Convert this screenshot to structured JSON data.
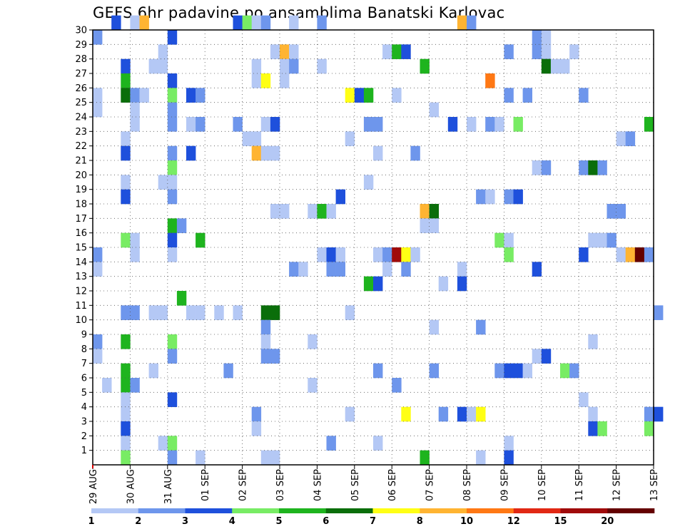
{
  "title": "GEFS 6hr padavine po ansamblima Banatski Karlovac",
  "colors": {
    "1": "#b4c8f5",
    "2": "#6e96ec",
    "3": "#1e50dc",
    "4": "#78ec64",
    "5": "#1eb41e",
    "6": "#0a6e0a",
    "7": "#ffff14",
    "8": "#ffb432",
    "10": "#ff7814",
    "12": "#e12814",
    "15": "#a00a0a",
    "20": "#640000"
  },
  "chart_data": {
    "type": "heatmap",
    "title": "GEFS 6hr padavine po ansamblima Banatski Karlovac",
    "xlabel": "",
    "ylabel": "",
    "x_tick_labels": [
      "29 AUG",
      "30 AUG",
      "31 AUG",
      "01 SEP",
      "02 SEP",
      "03 SEP",
      "04 SEP",
      "05 SEP",
      "06 SEP",
      "07 SEP",
      "08 SEP",
      "09 SEP",
      "10 SEP",
      "11 SEP",
      "12 SEP",
      "13 SEP"
    ],
    "y_tick_labels": [
      "1",
      "2",
      "3",
      "4",
      "5",
      "6",
      "7",
      "8",
      "9",
      "10",
      "11",
      "12",
      "13",
      "14",
      "15",
      "16",
      "17",
      "18",
      "19",
      "20",
      "21",
      "22",
      "23",
      "24",
      "25",
      "26",
      "27",
      "28",
      "29",
      "30"
    ],
    "ylim": [
      0,
      30
    ],
    "x_step_hours": 6,
    "grid": true,
    "legend": {
      "placement": "bottom",
      "labels": [
        "1",
        "2",
        "3",
        "4",
        "5",
        "6",
        "7",
        "8",
        "10",
        "12",
        "15",
        "20"
      ],
      "colors": [
        "#b4c8f5",
        "#6e96ec",
        "#1e50dc",
        "#78ec64",
        "#1eb41e",
        "#0a6e0a",
        "#ffff14",
        "#ffb432",
        "#ff7814",
        "#e12814",
        "#a00a0a",
        "#640000"
      ]
    },
    "cells": [
      [
        2,
        30,
        3
      ],
      [
        4,
        30,
        1
      ],
      [
        5,
        30,
        8
      ],
      [
        15,
        30,
        3
      ],
      [
        16,
        30,
        4
      ],
      [
        17,
        30,
        1
      ],
      [
        18,
        30,
        2
      ],
      [
        21,
        30,
        1
      ],
      [
        24,
        30,
        2
      ],
      [
        39,
        30,
        8
      ],
      [
        40,
        30,
        2
      ],
      [
        0,
        29,
        2
      ],
      [
        8,
        29,
        3
      ],
      [
        47,
        29,
        2
      ],
      [
        48,
        29,
        1
      ],
      [
        7,
        28,
        1
      ],
      [
        19,
        28,
        1
      ],
      [
        20,
        28,
        8
      ],
      [
        21,
        28,
        1
      ],
      [
        31,
        28,
        1
      ],
      [
        32,
        28,
        5
      ],
      [
        33,
        28,
        3
      ],
      [
        44,
        28,
        2
      ],
      [
        47,
        28,
        2
      ],
      [
        48,
        28,
        1
      ],
      [
        51,
        28,
        1
      ],
      [
        3,
        27,
        3
      ],
      [
        6,
        27,
        1
      ],
      [
        7,
        27,
        1
      ],
      [
        17,
        27,
        1
      ],
      [
        20,
        27,
        1
      ],
      [
        21,
        27,
        2
      ],
      [
        24,
        27,
        1
      ],
      [
        35,
        27,
        5
      ],
      [
        48,
        27,
        6
      ],
      [
        49,
        27,
        1
      ],
      [
        50,
        27,
        1
      ],
      [
        3,
        26,
        5
      ],
      [
        8,
        26,
        3
      ],
      [
        17,
        26,
        1
      ],
      [
        18,
        26,
        7
      ],
      [
        20,
        26,
        1
      ],
      [
        42,
        26,
        10
      ],
      [
        0,
        25,
        1
      ],
      [
        3,
        25,
        6
      ],
      [
        4,
        25,
        2
      ],
      [
        5,
        25,
        1
      ],
      [
        8,
        25,
        4
      ],
      [
        10,
        25,
        3
      ],
      [
        11,
        25,
        2
      ],
      [
        27,
        25,
        7
      ],
      [
        28,
        25,
        3
      ],
      [
        29,
        25,
        5
      ],
      [
        32,
        25,
        1
      ],
      [
        44,
        25,
        2
      ],
      [
        46,
        25,
        2
      ],
      [
        52,
        25,
        2
      ],
      [
        0,
        24,
        1
      ],
      [
        4,
        24,
        1
      ],
      [
        8,
        24,
        2
      ],
      [
        36,
        24,
        1
      ],
      [
        4,
        23,
        1
      ],
      [
        8,
        23,
        2
      ],
      [
        10,
        23,
        1
      ],
      [
        11,
        23,
        2
      ],
      [
        15,
        23,
        2
      ],
      [
        18,
        23,
        1
      ],
      [
        19,
        23,
        3
      ],
      [
        29,
        23,
        2
      ],
      [
        30,
        23,
        2
      ],
      [
        38,
        23,
        3
      ],
      [
        40,
        23,
        1
      ],
      [
        42,
        23,
        2
      ],
      [
        43,
        23,
        1
      ],
      [
        45,
        23,
        4
      ],
      [
        59,
        23,
        5
      ],
      [
        3,
        22,
        1
      ],
      [
        16,
        22,
        1
      ],
      [
        17,
        22,
        1
      ],
      [
        27,
        22,
        1
      ],
      [
        56,
        22,
        1
      ],
      [
        57,
        22,
        2
      ],
      [
        3,
        21,
        3
      ],
      [
        8,
        21,
        2
      ],
      [
        10,
        21,
        3
      ],
      [
        17,
        21,
        8
      ],
      [
        18,
        21,
        1
      ],
      [
        19,
        21,
        1
      ],
      [
        30,
        21,
        1
      ],
      [
        34,
        21,
        2
      ],
      [
        8,
        20,
        4
      ],
      [
        47,
        20,
        1
      ],
      [
        48,
        20,
        2
      ],
      [
        52,
        20,
        2
      ],
      [
        53,
        20,
        6
      ],
      [
        54,
        20,
        2
      ],
      [
        3,
        19,
        1
      ],
      [
        7,
        19,
        1
      ],
      [
        8,
        19,
        1
      ],
      [
        29,
        19,
        1
      ],
      [
        3,
        18,
        3
      ],
      [
        8,
        18,
        2
      ],
      [
        26,
        18,
        3
      ],
      [
        41,
        18,
        2
      ],
      [
        42,
        18,
        1
      ],
      [
        44,
        18,
        2
      ],
      [
        45,
        18,
        3
      ],
      [
        19,
        17,
        1
      ],
      [
        20,
        17,
        1
      ],
      [
        23,
        17,
        1
      ],
      [
        24,
        17,
        5
      ],
      [
        25,
        17,
        1
      ],
      [
        35,
        17,
        8
      ],
      [
        36,
        17,
        6
      ],
      [
        55,
        17,
        2
      ],
      [
        56,
        17,
        2
      ],
      [
        8,
        16,
        5
      ],
      [
        9,
        16,
        2
      ],
      [
        35,
        16,
        1
      ],
      [
        36,
        16,
        1
      ],
      [
        3,
        15,
        4
      ],
      [
        4,
        15,
        1
      ],
      [
        8,
        15,
        3
      ],
      [
        11,
        15,
        5
      ],
      [
        43,
        15,
        4
      ],
      [
        44,
        15,
        1
      ],
      [
        53,
        15,
        1
      ],
      [
        54,
        15,
        1
      ],
      [
        55,
        15,
        2
      ],
      [
        0,
        14,
        2
      ],
      [
        4,
        14,
        1
      ],
      [
        8,
        14,
        1
      ],
      [
        24,
        14,
        1
      ],
      [
        25,
        14,
        3
      ],
      [
        26,
        14,
        1
      ],
      [
        30,
        14,
        1
      ],
      [
        31,
        14,
        2
      ],
      [
        32,
        14,
        15
      ],
      [
        33,
        14,
        7
      ],
      [
        34,
        14,
        1
      ],
      [
        44,
        14,
        4
      ],
      [
        52,
        14,
        3
      ],
      [
        56,
        14,
        1
      ],
      [
        57,
        14,
        8
      ],
      [
        58,
        14,
        20
      ],
      [
        59,
        14,
        2
      ],
      [
        0,
        13,
        1
      ],
      [
        21,
        13,
        2
      ],
      [
        22,
        13,
        1
      ],
      [
        25,
        13,
        2
      ],
      [
        26,
        13,
        2
      ],
      [
        31,
        13,
        1
      ],
      [
        33,
        13,
        2
      ],
      [
        39,
        13,
        1
      ],
      [
        47,
        13,
        3
      ],
      [
        29,
        12,
        5
      ],
      [
        30,
        12,
        3
      ],
      [
        37,
        12,
        1
      ],
      [
        39,
        12,
        3
      ],
      [
        9,
        11,
        5
      ],
      [
        3,
        10,
        2
      ],
      [
        4,
        10,
        2
      ],
      [
        6,
        10,
        1
      ],
      [
        7,
        10,
        1
      ],
      [
        10,
        10,
        1
      ],
      [
        11,
        10,
        1
      ],
      [
        13,
        10,
        1
      ],
      [
        15,
        10,
        1
      ],
      [
        18,
        10,
        6
      ],
      [
        19,
        10,
        6
      ],
      [
        27,
        10,
        1
      ],
      [
        60,
        10,
        2
      ],
      [
        18,
        9,
        2
      ],
      [
        36,
        9,
        1
      ],
      [
        41,
        9,
        2
      ],
      [
        0,
        8,
        2
      ],
      [
        3,
        8,
        5
      ],
      [
        8,
        8,
        4
      ],
      [
        18,
        8,
        1
      ],
      [
        23,
        8,
        1
      ],
      [
        53,
        8,
        1
      ],
      [
        0,
        7,
        1
      ],
      [
        8,
        7,
        2
      ],
      [
        18,
        7,
        2
      ],
      [
        19,
        7,
        2
      ],
      [
        47,
        7,
        1
      ],
      [
        48,
        7,
        3
      ],
      [
        3,
        6,
        5
      ],
      [
        6,
        6,
        1
      ],
      [
        14,
        6,
        2
      ],
      [
        30,
        6,
        2
      ],
      [
        36,
        6,
        2
      ],
      [
        43,
        6,
        2
      ],
      [
        44,
        6,
        3
      ],
      [
        45,
        6,
        3
      ],
      [
        46,
        6,
        1
      ],
      [
        50,
        6,
        4
      ],
      [
        51,
        6,
        2
      ],
      [
        1,
        5,
        1
      ],
      [
        3,
        5,
        5
      ],
      [
        4,
        5,
        2
      ],
      [
        23,
        5,
        1
      ],
      [
        32,
        5,
        2
      ],
      [
        3,
        4,
        1
      ],
      [
        8,
        4,
        3
      ],
      [
        52,
        4,
        1
      ],
      [
        3,
        3,
        1
      ],
      [
        17,
        3,
        2
      ],
      [
        27,
        3,
        1
      ],
      [
        33,
        3,
        7
      ],
      [
        37,
        3,
        2
      ],
      [
        39,
        3,
        3
      ],
      [
        40,
        3,
        1
      ],
      [
        41,
        3,
        7
      ],
      [
        53,
        3,
        1
      ],
      [
        59,
        3,
        2
      ],
      [
        60,
        3,
        3
      ],
      [
        3,
        2,
        3
      ],
      [
        17,
        2,
        1
      ],
      [
        53,
        2,
        3
      ],
      [
        54,
        2,
        4
      ],
      [
        59,
        2,
        4
      ],
      [
        3,
        1,
        1
      ],
      [
        7,
        1,
        1
      ],
      [
        8,
        1,
        4
      ],
      [
        25,
        1,
        2
      ],
      [
        30,
        1,
        1
      ],
      [
        44,
        1,
        1
      ],
      [
        3,
        0,
        4
      ],
      [
        8,
        0,
        2
      ],
      [
        11,
        0,
        1
      ],
      [
        18,
        0,
        1
      ],
      [
        19,
        0,
        1
      ],
      [
        35,
        0,
        5
      ],
      [
        41,
        0,
        1
      ],
      [
        44,
        0,
        3
      ]
    ]
  }
}
